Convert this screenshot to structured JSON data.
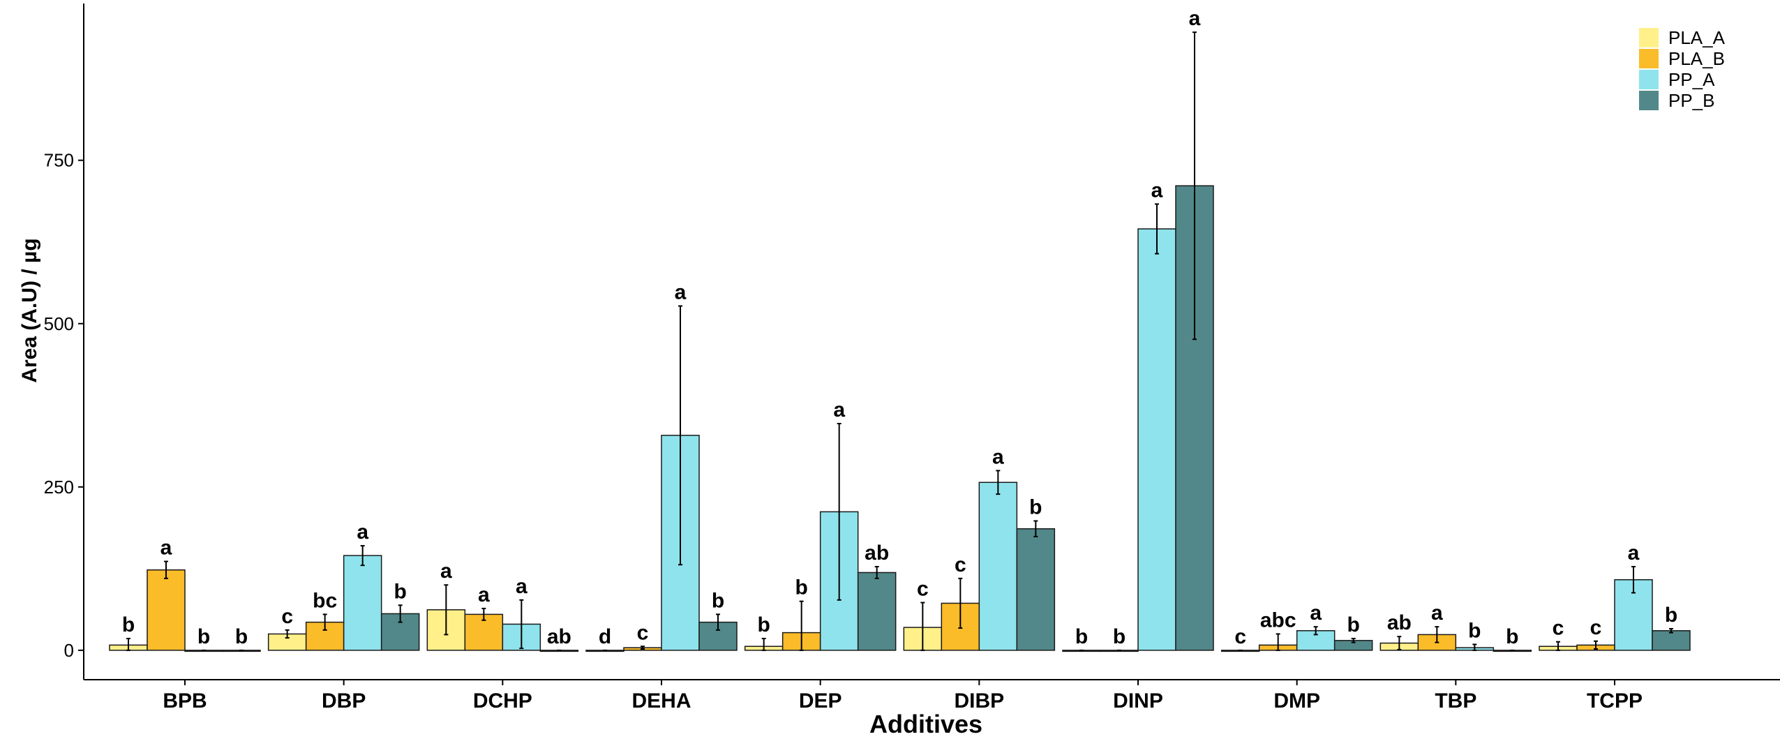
{
  "chart_data": {
    "type": "bar",
    "xlabel": "Additives",
    "ylabel": "Area (A.U) / µg",
    "ylim": [
      -45,
      990
    ],
    "yticks": [
      0,
      250,
      500,
      750
    ],
    "grid": false,
    "legend_position": "top-right",
    "categories": [
      "BPB",
      "DBP",
      "DCHP",
      "DEHA",
      "DEP",
      "DIBP",
      "DINP",
      "DMP",
      "TBP",
      "TCPP"
    ],
    "series": [
      {
        "name": "PLA_A",
        "color": "#FFF08A",
        "values": [
          8,
          25,
          62,
          0,
          6,
          35,
          0,
          0,
          11,
          6
        ],
        "errors": [
          10,
          6,
          38,
          0,
          12,
          38,
          0,
          0,
          10,
          7
        ],
        "letters": [
          "b",
          "c",
          "a",
          "d",
          "b",
          "c",
          "b",
          "c",
          "ab",
          "c"
        ]
      },
      {
        "name": "PLA_B",
        "color": "#FBBC2A",
        "values": [
          123,
          43,
          55,
          4,
          27,
          72,
          0,
          8,
          24,
          8
        ],
        "errors": [
          13,
          12,
          9,
          2,
          48,
          38,
          0,
          17,
          12,
          6
        ],
        "letters": [
          "a",
          "bc",
          "a",
          "c",
          "b",
          "c",
          "b",
          "abc",
          "a",
          "c"
        ]
      },
      {
        "name": "PP_A",
        "color": "#8FE3EC",
        "values": [
          0,
          145,
          40,
          329,
          212,
          257,
          645,
          30,
          4,
          108
        ],
        "errors": [
          0,
          15,
          37,
          198,
          135,
          18,
          38,
          6,
          5,
          20
        ],
        "letters": [
          "b",
          "a",
          "a",
          "a",
          "a",
          "a",
          "a",
          "a",
          "b",
          "a"
        ]
      },
      {
        "name": "PP_B",
        "color": "#52888A",
        "values": [
          0,
          56,
          0,
          43,
          119,
          186,
          711,
          15,
          0,
          30
        ],
        "errors": [
          0,
          13,
          0,
          12,
          9,
          12,
          235,
          3,
          0,
          3
        ],
        "letters": [
          "b",
          "b",
          "ab",
          "b",
          "ab",
          "b",
          "a",
          "b",
          "b",
          "b"
        ]
      }
    ]
  }
}
